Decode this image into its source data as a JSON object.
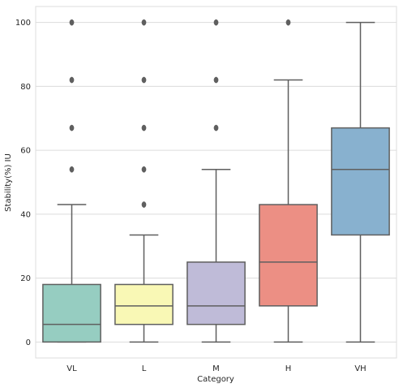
{
  "chart_data": {
    "type": "box",
    "xlabel": "Category",
    "ylabel": "Stability(%) IU",
    "ylim": [
      -5,
      105
    ],
    "yticks": [
      0,
      20,
      40,
      60,
      80,
      100
    ],
    "categories": [
      "VL",
      "L",
      "M",
      "H",
      "VH"
    ],
    "grid": true,
    "boxes": [
      {
        "category": "VL",
        "whisker_low": 0,
        "q1": 0,
        "median": 5.5,
        "q3": 18,
        "whisker_high": 43,
        "outliers": [
          54,
          67,
          82,
          100
        ],
        "color": "#96cdc1"
      },
      {
        "category": "L",
        "whisker_low": 0,
        "q1": 5.5,
        "median": 11.3,
        "q3": 18,
        "whisker_high": 33.5,
        "outliers": [
          43,
          54,
          67,
          82,
          100
        ],
        "color": "#f9f8b5"
      },
      {
        "category": "M",
        "whisker_low": 0,
        "q1": 5.5,
        "median": 11.3,
        "q3": 25,
        "whisker_high": 54,
        "outliers": [
          67,
          82,
          100
        ],
        "color": "#bfbbd8"
      },
      {
        "category": "H",
        "whisker_low": 0,
        "q1": 11.3,
        "median": 25,
        "q3": 43,
        "whisker_high": 82,
        "outliers": [
          100
        ],
        "color": "#ec8f84"
      },
      {
        "category": "VH",
        "whisker_low": 0,
        "q1": 33.5,
        "median": 54,
        "q3": 67,
        "whisker_high": 100,
        "outliers": [],
        "color": "#88b1cf"
      }
    ]
  }
}
